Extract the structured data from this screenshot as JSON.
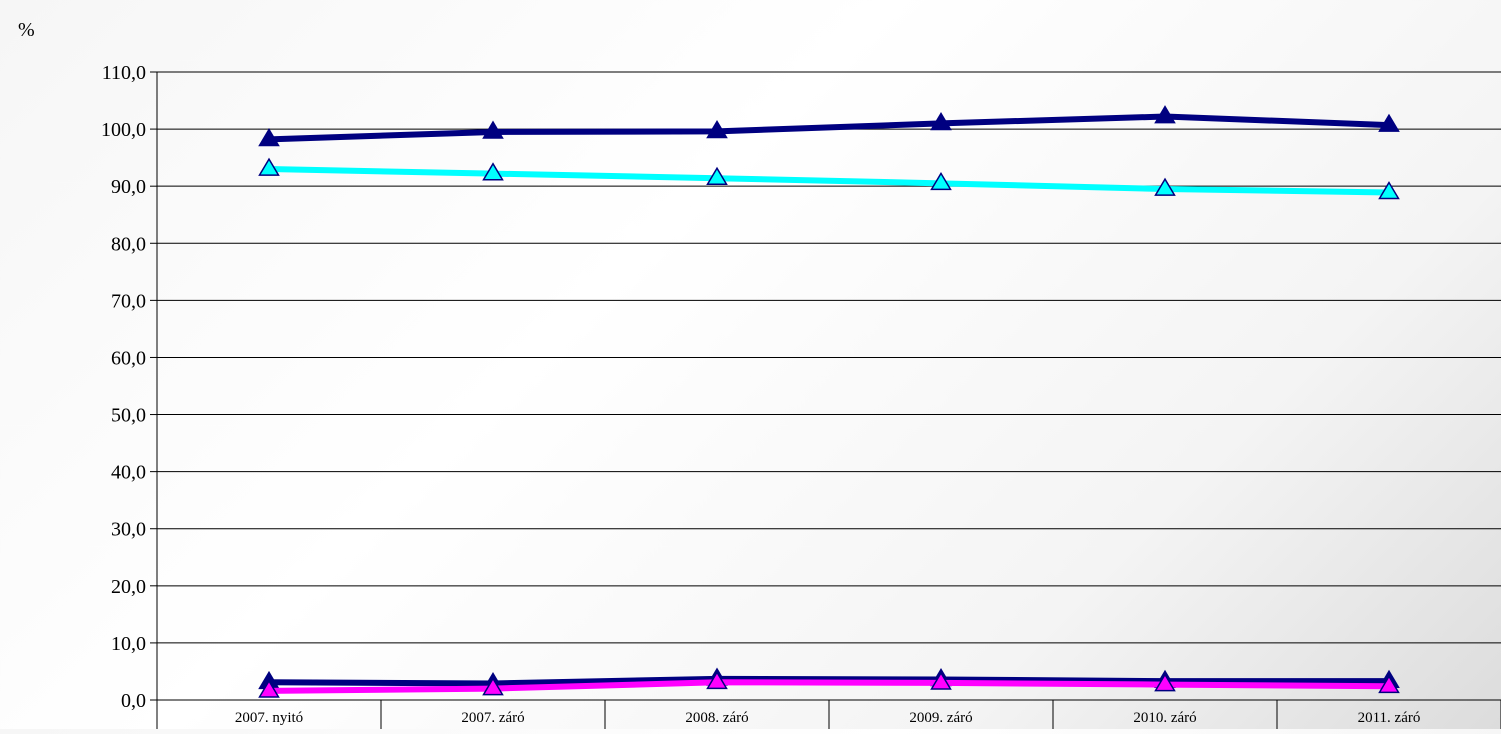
{
  "chart_data": {
    "type": "line",
    "ylabel": "%",
    "ylim": [
      0,
      110
    ],
    "yticks": [
      "0,0",
      "10,0",
      "20,0",
      "30,0",
      "40,0",
      "50,0",
      "60,0",
      "70,0",
      "80,0",
      "90,0",
      "100,0",
      "110,0"
    ],
    "categories": [
      "2007. nyitó",
      "2007. záró",
      "2008. záró",
      "2009. záró",
      "2010. záró",
      "2011. záró"
    ],
    "grid": true,
    "legend": "none",
    "series": [
      {
        "values": [
          98.2,
          99.5,
          99.6,
          101.0,
          102.2,
          100.7
        ],
        "color": "#000080"
      },
      {
        "values": [
          93.0,
          92.2,
          91.4,
          90.5,
          89.5,
          88.9
        ],
        "color": "#00ffff"
      },
      {
        "values": [
          3.1,
          2.9,
          3.7,
          3.6,
          3.3,
          3.3
        ],
        "color": "#000080"
      },
      {
        "values": [
          1.6,
          2.0,
          3.1,
          3.0,
          2.7,
          2.4
        ],
        "color": "#ff00ff"
      }
    ]
  }
}
